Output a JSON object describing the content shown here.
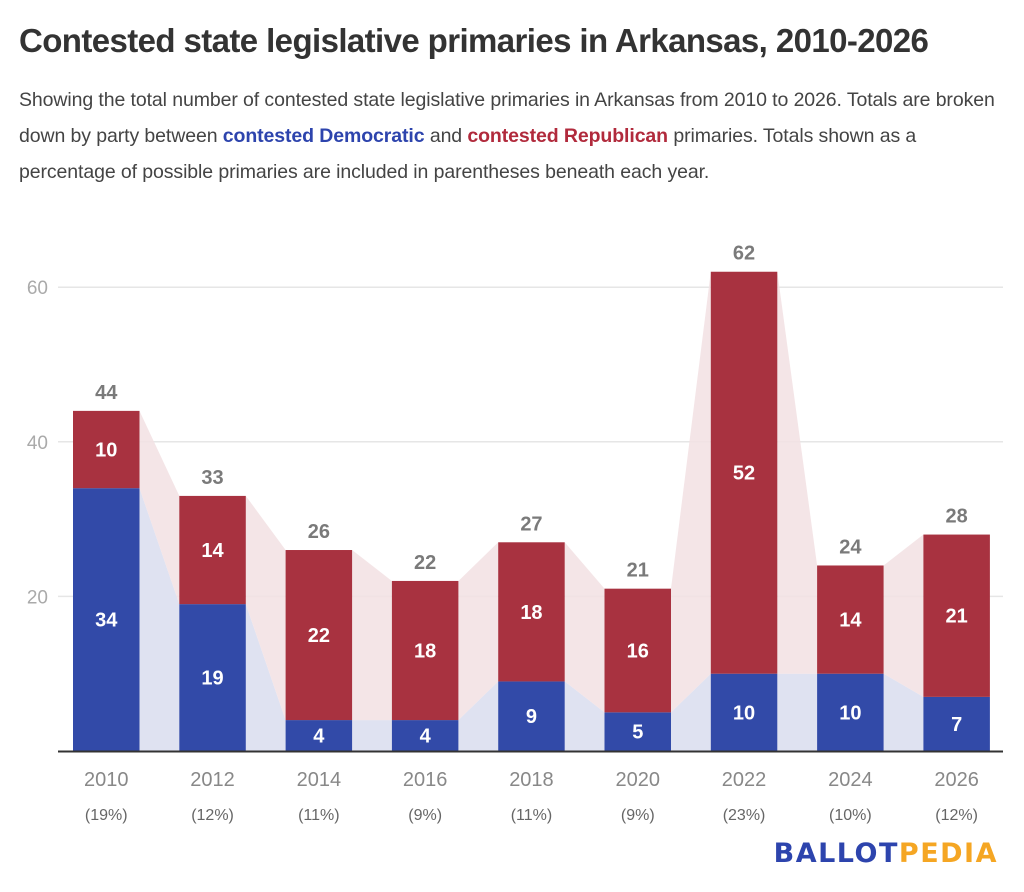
{
  "title": "Contested state legislative primaries in Arkansas, 2010-2026",
  "subtitle": {
    "part1": "Showing the total number of contested state legislative primaries in Arkansas from 2010 to 2026. Totals are broken down by party between ",
    "dem_link": "contested Democratic",
    "part2": " and ",
    "rep_link": "contested Republican",
    "part3": " primaries. Totals shown as a percentage of possible primaries are included in parentheses beneath each year."
  },
  "colors": {
    "democratic": "#324aa8",
    "republican": "#a83240",
    "dem_band": "#dfe2f1",
    "rep_band": "#f2e1e3",
    "text_dark": "#333333",
    "label_gray": "#7a7a7a",
    "grid": "#e6e6e6",
    "axis": "#333333"
  },
  "chart_data": {
    "type": "bar",
    "stacked": true,
    "title": "Contested state legislative primaries in Arkansas, 2010-2026",
    "xlabel": "",
    "ylabel": "",
    "ylim": [
      0,
      62
    ],
    "yticks": [
      20,
      40,
      60
    ],
    "grid": true,
    "categories": [
      "2010",
      "2012",
      "2014",
      "2016",
      "2018",
      "2020",
      "2022",
      "2024",
      "2026"
    ],
    "percent_labels": [
      "(19%)",
      "(12%)",
      "(11%)",
      "(9%)",
      "(11%)",
      "(9%)",
      "(23%)",
      "(10%)",
      "(12%)"
    ],
    "series": [
      {
        "name": "Contested Democratic",
        "values": [
          34,
          19,
          4,
          4,
          9,
          5,
          10,
          10,
          7
        ]
      },
      {
        "name": "Contested Republican",
        "values": [
          10,
          14,
          22,
          18,
          18,
          16,
          52,
          14,
          21
        ]
      }
    ],
    "totals": [
      44,
      33,
      26,
      22,
      27,
      21,
      62,
      24,
      28
    ],
    "connector_bands": true
  },
  "logo": {
    "part1": "BALLOT",
    "part2": "PEDIA"
  }
}
